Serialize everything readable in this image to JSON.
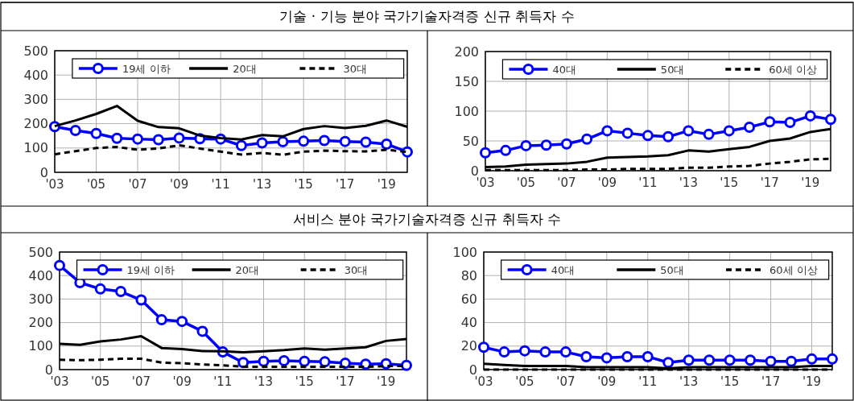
{
  "chart_data": [
    {
      "type": "line",
      "title": "기술 · 기능 분야 국가기술자격증 신규 취득자 수",
      "x": [
        2003,
        2004,
        2005,
        2006,
        2007,
        2008,
        2009,
        2010,
        2011,
        2012,
        2013,
        2014,
        2015,
        2016,
        2017,
        2018,
        2019,
        2020
      ],
      "xlim": [
        2003,
        2020
      ],
      "xticks": [
        {
          "value": 2003,
          "label": "'03"
        },
        {
          "value": 2005,
          "label": "'05"
        },
        {
          "value": 2007,
          "label": "'07"
        },
        {
          "value": 2009,
          "label": "'09"
        },
        {
          "value": 2011,
          "label": "'11"
        },
        {
          "value": 2013,
          "label": "'13"
        },
        {
          "value": 2015,
          "label": "'15"
        },
        {
          "value": 2017,
          "label": "'17"
        },
        {
          "value": 2019,
          "label": "'19"
        }
      ],
      "ylim": [
        0,
        500
      ],
      "yticks": [
        0,
        100,
        200,
        300,
        400,
        500
      ],
      "grid": true,
      "legend": "top",
      "series": [
        {
          "name": "19세 이하",
          "color": "#0000ff",
          "marker": "circle",
          "values": [
            188,
            172,
            160,
            140,
            137,
            134,
            141,
            138,
            137,
            110,
            121,
            126,
            128,
            131,
            127,
            124,
            116,
            84
          ]
        },
        {
          "name": "20대",
          "color": "#000000",
          "values": [
            190,
            213,
            240,
            273,
            212,
            186,
            181,
            151,
            141,
            135,
            153,
            148,
            178,
            190,
            182,
            191,
            213,
            187
          ]
        },
        {
          "name": "30대",
          "color": "#000000",
          "line_style": "dashed",
          "values": [
            74,
            87,
            100,
            104,
            93,
            98,
            111,
            98,
            85,
            73,
            80,
            72,
            85,
            89,
            87,
            86,
            93,
            84
          ]
        }
      ]
    },
    {
      "type": "line",
      "x": [
        2003,
        2004,
        2005,
        2006,
        2007,
        2008,
        2009,
        2010,
        2011,
        2012,
        2013,
        2014,
        2015,
        2016,
        2017,
        2018,
        2019,
        2020
      ],
      "xlim": [
        2003,
        2020
      ],
      "xticks": [
        {
          "value": 2003,
          "label": "'03"
        },
        {
          "value": 2005,
          "label": "'05"
        },
        {
          "value": 2007,
          "label": "'07"
        },
        {
          "value": 2009,
          "label": "'09"
        },
        {
          "value": 2011,
          "label": "'11"
        },
        {
          "value": 2013,
          "label": "'13"
        },
        {
          "value": 2015,
          "label": "'15"
        },
        {
          "value": 2017,
          "label": "'17"
        },
        {
          "value": 2019,
          "label": "'19"
        }
      ],
      "ylim": [
        0,
        200
      ],
      "yticks": [
        0,
        50,
        100,
        150,
        200
      ],
      "grid": true,
      "legend": "top",
      "series": [
        {
          "name": "40대",
          "color": "#0000ff",
          "marker": "circle",
          "values": [
            30,
            34,
            42,
            43,
            45,
            53,
            67,
            63,
            59,
            57,
            67,
            61,
            67,
            73,
            82,
            81,
            92,
            86
          ]
        },
        {
          "name": "50대",
          "color": "#000000",
          "values": [
            6,
            7,
            10,
            11,
            12,
            15,
            22,
            23,
            24,
            26,
            34,
            32,
            36,
            40,
            50,
            54,
            65,
            70
          ]
        },
        {
          "name": "60세 이상",
          "color": "#000000",
          "line_style": "dashed",
          "values": [
            1,
            1,
            1,
            1,
            1,
            2,
            2,
            3,
            3,
            3,
            5,
            5,
            7,
            8,
            12,
            15,
            19,
            20
          ]
        }
      ]
    },
    {
      "type": "line",
      "title": "서비스 분야 국가기술자격증 신규 취득자 수",
      "x": [
        2003,
        2004,
        2005,
        2006,
        2007,
        2008,
        2009,
        2010,
        2011,
        2012,
        2013,
        2014,
        2015,
        2016,
        2017,
        2018,
        2019,
        2020
      ],
      "xlim": [
        2003,
        2020
      ],
      "xticks": [
        {
          "value": 2003,
          "label": "'03"
        },
        {
          "value": 2005,
          "label": "'05"
        },
        {
          "value": 2007,
          "label": "'07"
        },
        {
          "value": 2009,
          "label": "'09"
        },
        {
          "value": 2011,
          "label": "'11"
        },
        {
          "value": 2013,
          "label": "'13"
        },
        {
          "value": 2015,
          "label": "'15"
        },
        {
          "value": 2017,
          "label": "'17"
        },
        {
          "value": 2019,
          "label": "'19"
        }
      ],
      "ylim": [
        0,
        500
      ],
      "yticks": [
        0,
        100,
        200,
        300,
        400,
        500
      ],
      "grid": true,
      "legend": "top",
      "series": [
        {
          "name": "19세 이하",
          "color": "#0000ff",
          "marker": "circle",
          "values": [
            443,
            370,
            343,
            332,
            296,
            212,
            205,
            163,
            75,
            30,
            35,
            38,
            35,
            33,
            27,
            23,
            25,
            18
          ]
        },
        {
          "name": "20대",
          "color": "#000000",
          "values": [
            110,
            105,
            120,
            128,
            142,
            92,
            87,
            79,
            78,
            74,
            78,
            83,
            90,
            85,
            90,
            95,
            122,
            130
          ]
        },
        {
          "name": "30대",
          "color": "#000000",
          "line_style": "dashed",
          "values": [
            42,
            40,
            42,
            46,
            46,
            30,
            27,
            22,
            18,
            12,
            12,
            12,
            12,
            12,
            12,
            12,
            15,
            15
          ]
        }
      ]
    },
    {
      "type": "line",
      "x": [
        2003,
        2004,
        2005,
        2006,
        2007,
        2008,
        2009,
        2010,
        2011,
        2012,
        2013,
        2014,
        2015,
        2016,
        2017,
        2018,
        2019,
        2020
      ],
      "xlim": [
        2003,
        2020
      ],
      "xticks": [
        {
          "value": 2003,
          "label": "'03"
        },
        {
          "value": 2005,
          "label": "'05"
        },
        {
          "value": 2007,
          "label": "'07"
        },
        {
          "value": 2009,
          "label": "'09"
        },
        {
          "value": 2011,
          "label": "'11"
        },
        {
          "value": 2013,
          "label": "'13"
        },
        {
          "value": 2015,
          "label": "'15"
        },
        {
          "value": 2017,
          "label": "'17"
        },
        {
          "value": 2019,
          "label": "'19"
        }
      ],
      "ylim": [
        0,
        100
      ],
      "yticks": [
        0,
        20,
        40,
        60,
        80,
        100
      ],
      "grid": true,
      "legend": "top",
      "series": [
        {
          "name": "40대",
          "color": "#0000ff",
          "marker": "circle",
          "values": [
            19,
            15,
            16,
            15,
            15,
            11,
            10,
            11,
            11,
            6,
            8,
            8,
            8,
            8,
            7,
            7,
            9,
            9
          ]
        },
        {
          "name": "50대",
          "color": "#000000",
          "values": [
            5,
            4,
            3,
            3,
            3,
            2,
            2,
            2,
            2,
            1,
            2,
            2,
            2,
            2,
            2,
            2,
            3,
            3
          ]
        },
        {
          "name": "60세 이상",
          "color": "#000000",
          "line_style": "dashed",
          "values": [
            0,
            0,
            0,
            0,
            0,
            0,
            0,
            0,
            0,
            0,
            0,
            0,
            0,
            0,
            0,
            0,
            0,
            0
          ]
        }
      ]
    }
  ]
}
